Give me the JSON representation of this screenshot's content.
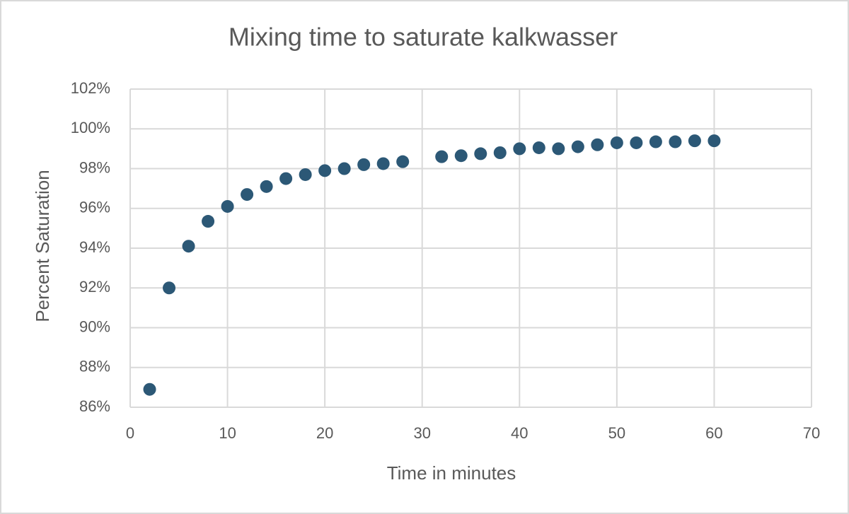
{
  "chart_data": {
    "type": "scatter",
    "title": "Mixing time to saturate kalkwasser",
    "x_label": "Time in minutes",
    "y_label": "Percent Saturation",
    "x": [
      2,
      4,
      6,
      8,
      10,
      12,
      14,
      16,
      18,
      20,
      22,
      24,
      26,
      28,
      32,
      34,
      36,
      38,
      40,
      42,
      44,
      46,
      48,
      50,
      52,
      54,
      56,
      58,
      60
    ],
    "values": [
      86.9,
      92.0,
      94.1,
      95.35,
      96.1,
      96.7,
      97.1,
      97.5,
      97.7,
      97.9,
      98.0,
      98.2,
      98.25,
      98.35,
      98.6,
      98.65,
      98.75,
      98.8,
      99.0,
      99.05,
      99.0,
      99.1,
      99.2,
      99.3,
      99.3,
      99.35,
      99.35,
      99.4,
      99.4
    ],
    "color": "#2c5876",
    "xlim": [
      0,
      70
    ],
    "xticks": [
      0,
      10,
      20,
      30,
      40,
      50,
      60,
      70
    ],
    "ylim": [
      86,
      102
    ],
    "yticks": [
      {
        "value": 86,
        "label": "86%"
      },
      {
        "value": 88,
        "label": "88%"
      },
      {
        "value": 90,
        "label": "90%"
      },
      {
        "value": 92,
        "label": "92%"
      },
      {
        "value": 94,
        "label": "94%"
      },
      {
        "value": 96,
        "label": "96%"
      },
      {
        "value": 98,
        "label": "98%"
      },
      {
        "value": 100,
        "label": "100%"
      },
      {
        "value": 102,
        "label": "102%"
      }
    ],
    "grid": true
  }
}
